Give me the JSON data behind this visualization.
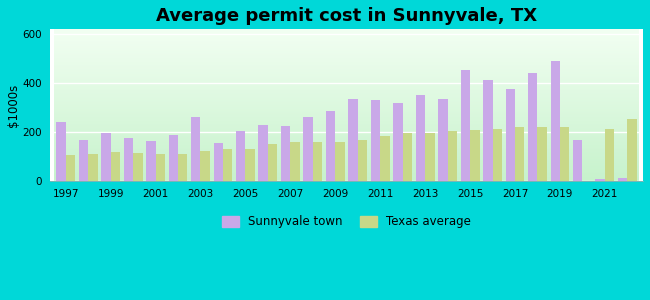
{
  "title": "Average permit cost in Sunnyvale, TX",
  "ylabel": "$1000s",
  "background_color": "#00d8d8",
  "years": [
    1997,
    1998,
    1999,
    2000,
    2001,
    2002,
    2003,
    2004,
    2005,
    2006,
    2007,
    2008,
    2009,
    2010,
    2011,
    2012,
    2013,
    2014,
    2015,
    2016,
    2017,
    2018,
    2019,
    2020,
    2021,
    2022
  ],
  "sunnyvale": [
    240,
    170,
    195,
    175,
    165,
    190,
    260,
    155,
    205,
    230,
    225,
    260,
    285,
    335,
    330,
    320,
    350,
    335,
    455,
    415,
    375,
    440,
    490,
    170,
    10,
    15
  ],
  "texas": [
    105,
    110,
    120,
    115,
    110,
    110,
    125,
    130,
    130,
    150,
    160,
    160,
    160,
    170,
    185,
    195,
    195,
    205,
    210,
    215,
    220,
    220,
    220,
    0,
    215,
    255
  ],
  "sunnyvale_color": "#c9a8e8",
  "texas_color": "#c8d888",
  "ylim": [
    0,
    620
  ],
  "yticks": [
    0,
    200,
    400,
    600
  ],
  "legend_sunnyvale": "Sunnyvale town",
  "legend_texas": "Texas average",
  "bar_width": 0.42,
  "title_fontsize": 13
}
